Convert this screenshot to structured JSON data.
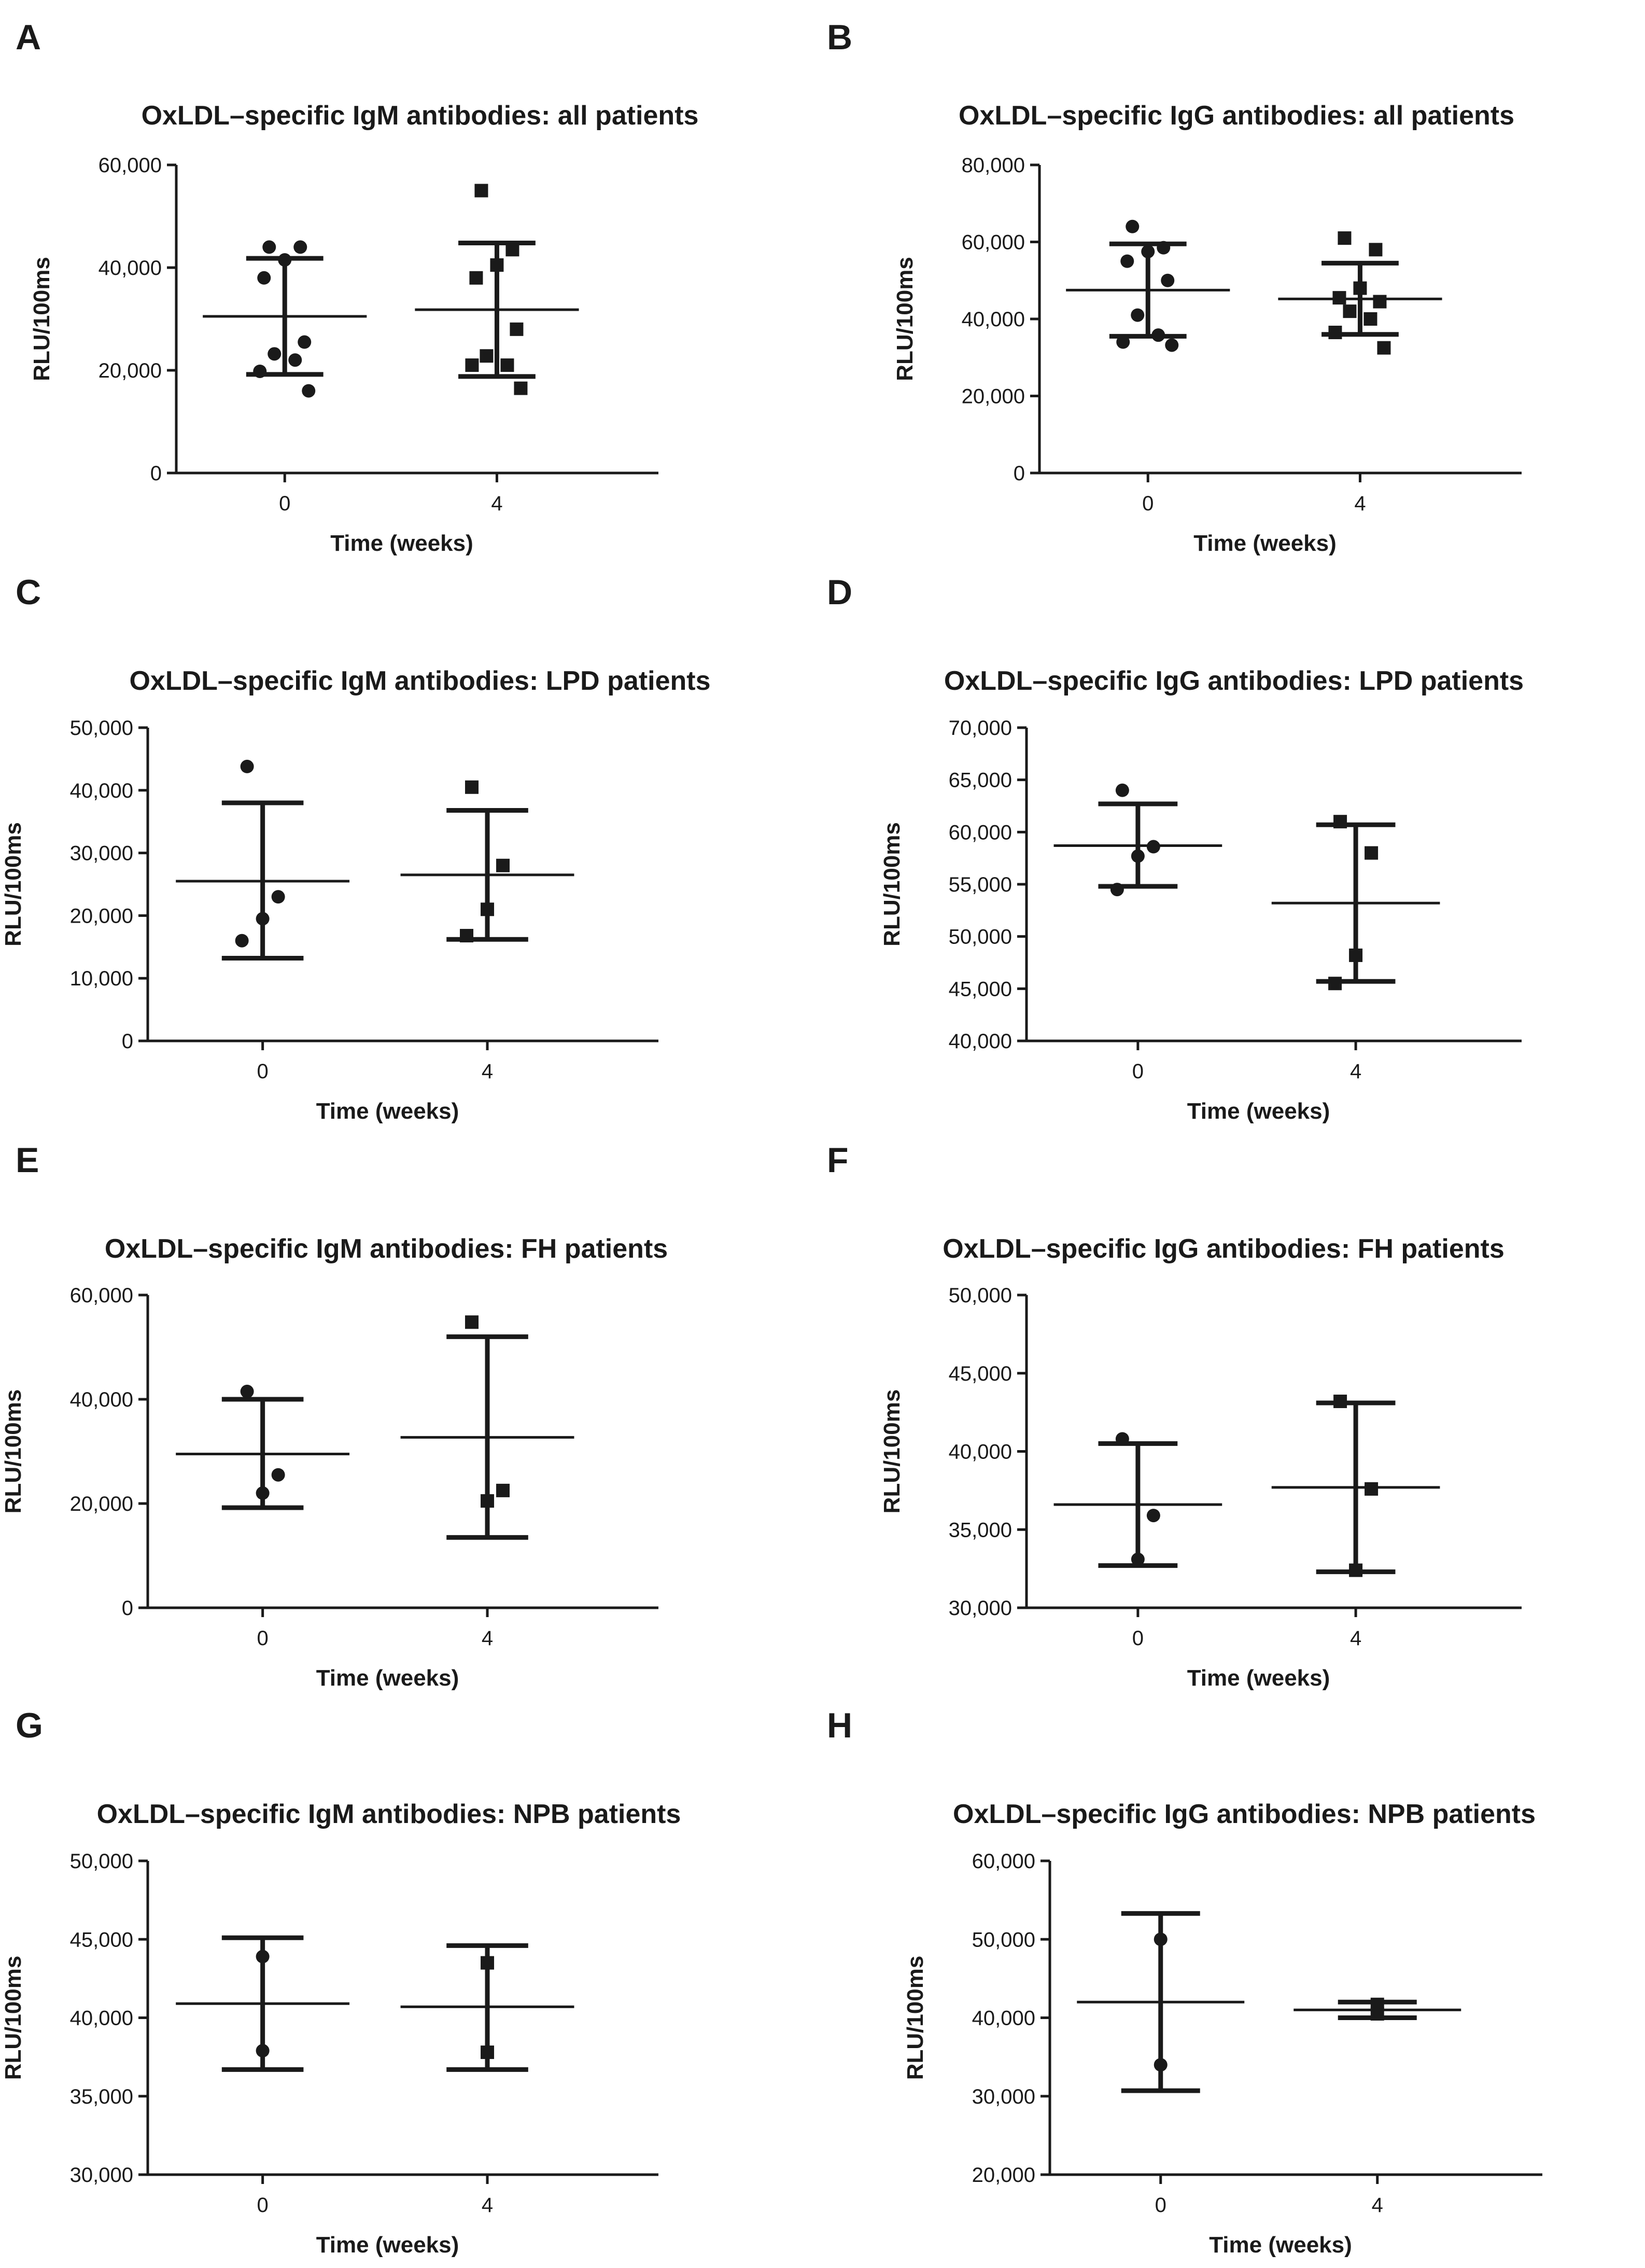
{
  "chart_data": [
    {
      "letter": "A",
      "type": "scatter",
      "title": "OxLDL–specific IgM antibodies: all patients",
      "xlabel": "Time (weeks)",
      "ylabel": "RLU/100ms",
      "ylim": [
        0,
        60000
      ],
      "yticks": [
        0,
        20000,
        40000,
        60000
      ],
      "ytick_labels": [
        "0",
        "20,000",
        "40,000",
        "60,000"
      ],
      "categories": [
        "0",
        "4"
      ],
      "groups": [
        {
          "category": "0",
          "marker": "circle",
          "mean": 30500,
          "sd_low": 19200,
          "sd_high": 41800,
          "points": [
            44000,
            44000,
            41500,
            38000,
            25500,
            23200,
            22000,
            19800,
            16000
          ]
        },
        {
          "category": "4",
          "marker": "square",
          "mean": 31800,
          "sd_low": 18800,
          "sd_high": 44800,
          "points": [
            55000,
            43500,
            40500,
            38000,
            28000,
            22800,
            21000,
            21000,
            16500
          ]
        }
      ]
    },
    {
      "letter": "B",
      "type": "scatter",
      "title": "OxLDL–specific IgG antibodies: all patients",
      "xlabel": "Time (weeks)",
      "ylabel": "RLU/100ms",
      "ylim": [
        0,
        80000
      ],
      "yticks": [
        0,
        20000,
        40000,
        60000,
        80000
      ],
      "ytick_labels": [
        "0",
        "20,000",
        "40,000",
        "60,000",
        "80,000"
      ],
      "categories": [
        "0",
        "4"
      ],
      "groups": [
        {
          "category": "0",
          "marker": "circle",
          "mean": 47500,
          "sd_low": 35500,
          "sd_high": 59500,
          "points": [
            64000,
            58500,
            57500,
            55000,
            50000,
            41000,
            35800,
            34000,
            33200
          ]
        },
        {
          "category": "4",
          "marker": "square",
          "mean": 45200,
          "sd_low": 36000,
          "sd_high": 54500,
          "points": [
            61000,
            58000,
            48000,
            45500,
            44500,
            42000,
            40000,
            36500,
            32500
          ]
        }
      ]
    },
    {
      "letter": "C",
      "type": "scatter",
      "title": "OxLDL–specific IgM antibodies: LPD patients",
      "xlabel": "Time (weeks)",
      "ylabel": "RLU/100ms",
      "ylim": [
        0,
        50000
      ],
      "yticks": [
        0,
        10000,
        20000,
        30000,
        40000,
        50000
      ],
      "ytick_labels": [
        "0",
        "10,000",
        "20,000",
        "30,000",
        "40,000",
        "50,000"
      ],
      "categories": [
        "0",
        "4"
      ],
      "groups": [
        {
          "category": "0",
          "marker": "circle",
          "mean": 25500,
          "sd_low": 13200,
          "sd_high": 38000,
          "points": [
            43800,
            23000,
            19500,
            16000
          ]
        },
        {
          "category": "4",
          "marker": "square",
          "mean": 26500,
          "sd_low": 16200,
          "sd_high": 36800,
          "points": [
            40500,
            28000,
            21000,
            16800
          ]
        }
      ]
    },
    {
      "letter": "D",
      "type": "scatter",
      "title": "OxLDL–specific IgG antibodies: LPD patients",
      "xlabel": "Time (weeks)",
      "ylabel": "RLU/100ms",
      "ylim": [
        40000,
        70000
      ],
      "yticks": [
        40000,
        45000,
        50000,
        55000,
        60000,
        65000,
        70000
      ],
      "ytick_labels": [
        "40,000",
        "45,000",
        "50,000",
        "55,000",
        "60,000",
        "65,000",
        "70,000"
      ],
      "categories": [
        "0",
        "4"
      ],
      "groups": [
        {
          "category": "0",
          "marker": "circle",
          "mean": 58700,
          "sd_low": 54800,
          "sd_high": 62700,
          "points": [
            64000,
            58600,
            57700,
            54500
          ]
        },
        {
          "category": "4",
          "marker": "square",
          "mean": 53200,
          "sd_low": 45700,
          "sd_high": 60700,
          "points": [
            61000,
            58000,
            48200,
            45500
          ]
        }
      ]
    },
    {
      "letter": "E",
      "type": "scatter",
      "title": "OxLDL–specific IgM antibodies: FH patients",
      "xlabel": "Time (weeks)",
      "ylabel": "RLU/100ms",
      "ylim": [
        0,
        60000
      ],
      "yticks": [
        0,
        20000,
        40000,
        60000
      ],
      "ytick_labels": [
        "0",
        "20,000",
        "40,000",
        "60,000"
      ],
      "categories": [
        "0",
        "4"
      ],
      "groups": [
        {
          "category": "0",
          "marker": "circle",
          "mean": 29500,
          "sd_low": 19200,
          "sd_high": 40000,
          "points": [
            41500,
            25500,
            22000
          ]
        },
        {
          "category": "4",
          "marker": "square",
          "mean": 32700,
          "sd_low": 13500,
          "sd_high": 52000,
          "points": [
            54800,
            22500,
            20500
          ]
        }
      ]
    },
    {
      "letter": "F",
      "type": "scatter",
      "title": "OxLDL–specific IgG antibodies: FH patients",
      "xlabel": "Time (weeks)",
      "ylabel": "RLU/100ms",
      "ylim": [
        30000,
        50000
      ],
      "yticks": [
        30000,
        35000,
        40000,
        45000,
        50000
      ],
      "ytick_labels": [
        "30,000",
        "35,000",
        "40,000",
        "45,000",
        "50,000"
      ],
      "categories": [
        "0",
        "4"
      ],
      "groups": [
        {
          "category": "0",
          "marker": "circle",
          "mean": 36600,
          "sd_low": 32700,
          "sd_high": 40500,
          "points": [
            40800,
            35900,
            33100
          ]
        },
        {
          "category": "4",
          "marker": "square",
          "mean": 37700,
          "sd_low": 32300,
          "sd_high": 43100,
          "points": [
            43200,
            37600,
            32400
          ]
        }
      ]
    },
    {
      "letter": "G",
      "type": "scatter",
      "title": "OxLDL–specific IgM antibodies: NPB patients",
      "xlabel": "Time (weeks)",
      "ylabel": "RLU/100ms",
      "ylim": [
        30000,
        50000
      ],
      "yticks": [
        30000,
        35000,
        40000,
        45000,
        50000
      ],
      "ytick_labels": [
        "30,000",
        "35,000",
        "40,000",
        "45,000",
        "50,000"
      ],
      "categories": [
        "0",
        "4"
      ],
      "groups": [
        {
          "category": "0",
          "marker": "circle",
          "mean": 40900,
          "sd_low": 36700,
          "sd_high": 45100,
          "points": [
            43900,
            37900
          ]
        },
        {
          "category": "4",
          "marker": "square",
          "mean": 40700,
          "sd_low": 36700,
          "sd_high": 44600,
          "points": [
            43500,
            37800
          ]
        }
      ]
    },
    {
      "letter": "H",
      "type": "scatter",
      "title": "OxLDL–specific IgG antibodies: NPB patients",
      "xlabel": "Time (weeks)",
      "ylabel": "RLU/100ms",
      "ylim": [
        20000,
        60000
      ],
      "yticks": [
        20000,
        30000,
        40000,
        50000,
        60000
      ],
      "ytick_labels": [
        "20,000",
        "30,000",
        "40,000",
        "50,000",
        "60,000"
      ],
      "categories": [
        "0",
        "4"
      ],
      "groups": [
        {
          "category": "0",
          "marker": "circle",
          "mean": 42000,
          "sd_low": 30700,
          "sd_high": 53300,
          "points": [
            50000,
            34000
          ]
        },
        {
          "category": "4",
          "marker": "square",
          "mean": 41000,
          "sd_low": 40000,
          "sd_high": 42000,
          "points": [
            41700,
            40500
          ]
        }
      ]
    }
  ]
}
